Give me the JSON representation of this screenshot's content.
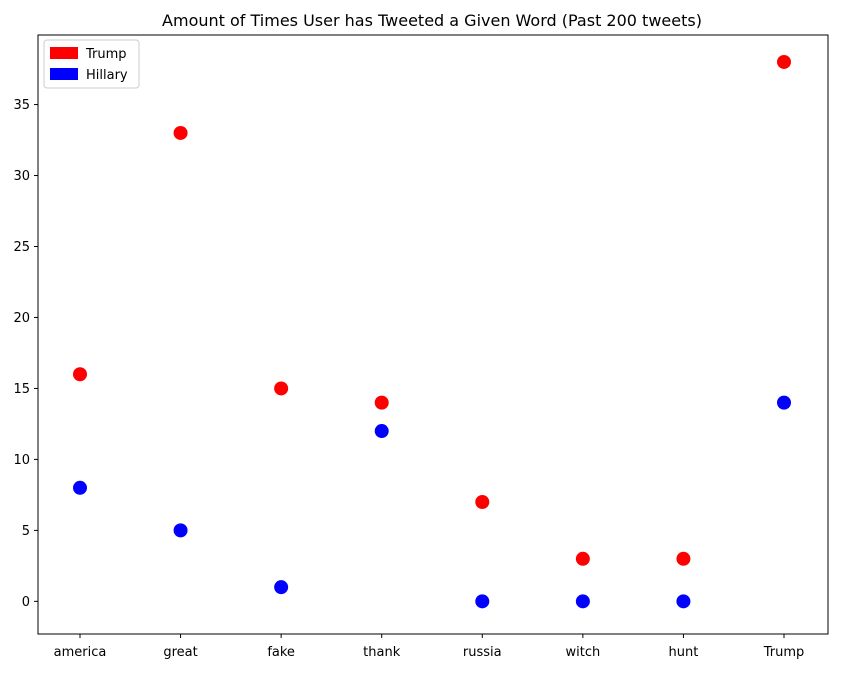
{
  "chart_data": {
    "type": "scatter",
    "title": "Amount of Times User has Tweeted a Given Word (Past 200 tweets)",
    "xlabel": "",
    "ylabel": "",
    "categories": [
      "america",
      "great",
      "fake",
      "thank",
      "russia",
      "witch",
      "hunt",
      "Trump"
    ],
    "ylim": [
      -2.3,
      39.9
    ],
    "yticks": [
      0,
      5,
      10,
      15,
      20,
      25,
      30,
      35
    ],
    "grid": false,
    "legend_position": "top-left",
    "series": [
      {
        "name": "Trump",
        "color": "#ff0000",
        "values": [
          16,
          33,
          15,
          14,
          7,
          3,
          3,
          38
        ]
      },
      {
        "name": "Hillary",
        "color": "#0000ff",
        "values": [
          8,
          5,
          1,
          12,
          0,
          0,
          0,
          14
        ]
      }
    ]
  }
}
